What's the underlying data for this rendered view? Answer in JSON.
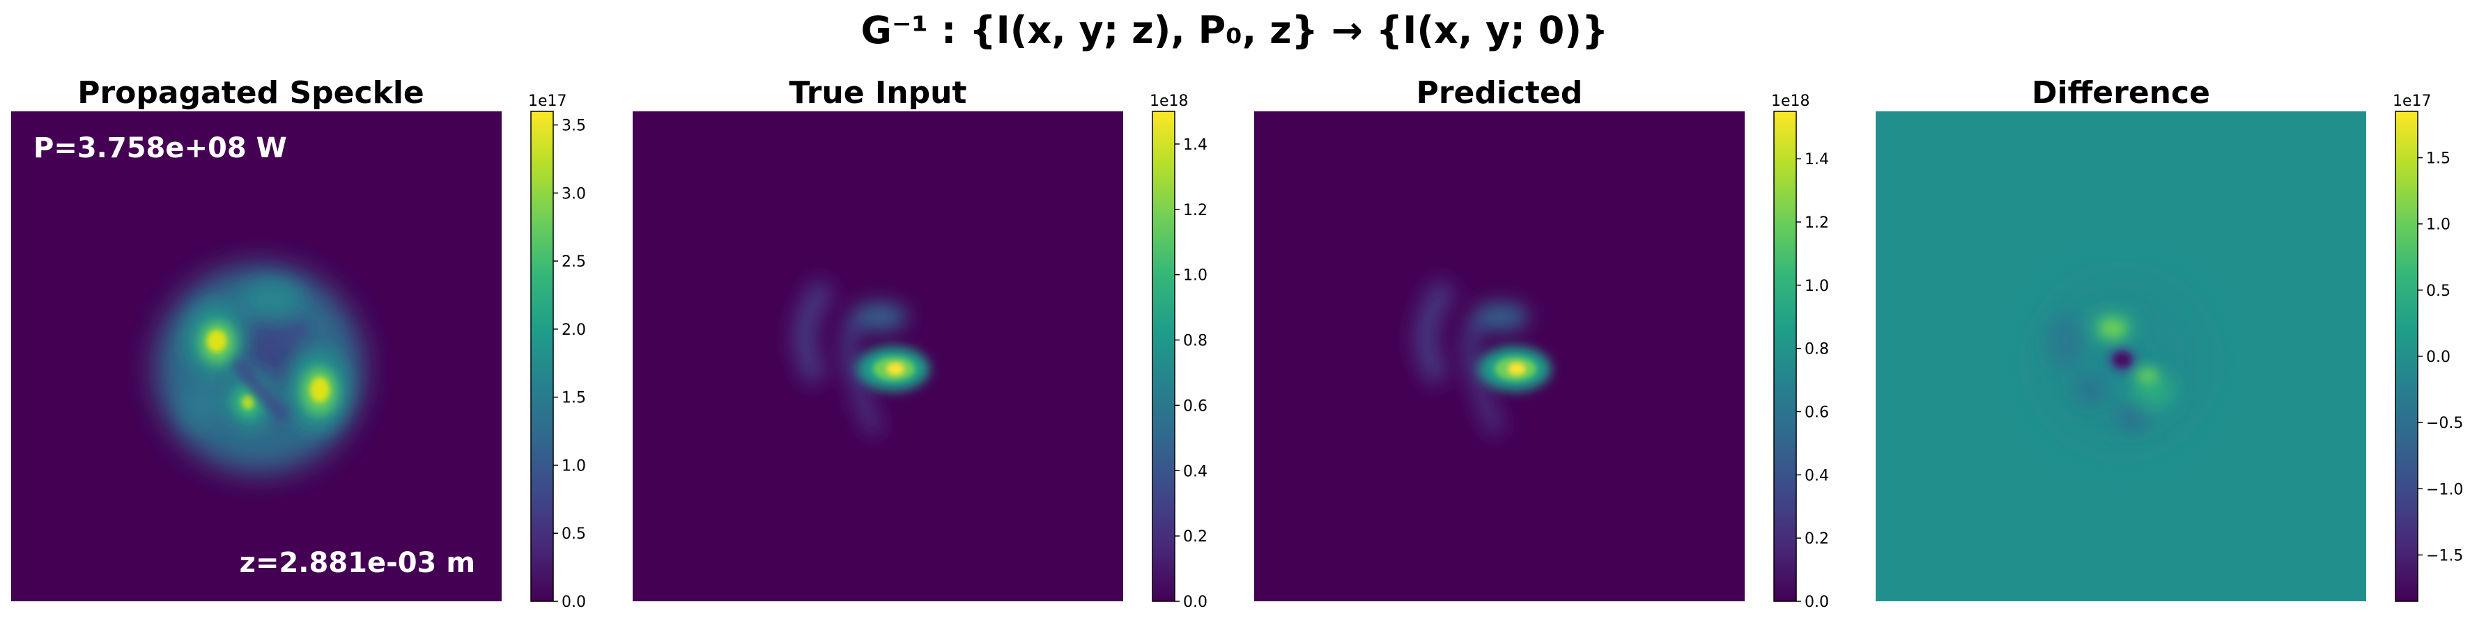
{
  "figure": {
    "suptitle": "G⁻¹ : {I(x, y; z), P₀, z} → {I(x, y; 0)}"
  },
  "colormap": {
    "name": "viridis",
    "stops": [
      "#440154",
      "#482878",
      "#3e4989",
      "#31688e",
      "#26828e",
      "#1f9e89",
      "#35b779",
      "#6ece58",
      "#b5de2b",
      "#fde725"
    ]
  },
  "chart_data": [
    {
      "type": "heatmap",
      "title": "Propagated Speckle",
      "description_of_field": "three bright lobes arranged in a ring (trefoil speckle)",
      "value_range": [
        0,
        3.6e+17
      ],
      "colorbar": {
        "offset": "1e17",
        "ticks": [
          "0.0",
          "0.5",
          "1.0",
          "1.5",
          "2.0",
          "2.5",
          "3.0",
          "3.5"
        ],
        "tick_values": [
          0.0,
          0.5,
          1.0,
          1.5,
          2.0,
          2.5,
          3.0,
          3.5
        ]
      },
      "annotations": {
        "power": "P=3.758e+08 W",
        "distance": "z=2.881e-03 m"
      }
    },
    {
      "type": "heatmap",
      "title": "True Input",
      "value_range": [
        0,
        1.5e+18
      ],
      "colorbar": {
        "offset": "1e18",
        "ticks": [
          "0.0",
          "0.2",
          "0.4",
          "0.6",
          "0.8",
          "1.0",
          "1.2",
          "1.4"
        ],
        "tick_values": [
          0.0,
          0.2,
          0.4,
          0.6,
          0.8,
          1.0,
          1.2,
          1.4
        ]
      }
    },
    {
      "type": "heatmap",
      "title": "Predicted",
      "value_range": [
        0,
        1.55e+18
      ],
      "colorbar": {
        "offset": "1e18",
        "ticks": [
          "0.0",
          "0.2",
          "0.4",
          "0.6",
          "0.8",
          "1.0",
          "1.2",
          "1.4"
        ],
        "tick_values": [
          0.0,
          0.2,
          0.4,
          0.6,
          0.8,
          1.0,
          1.2,
          1.4
        ]
      }
    },
    {
      "type": "heatmap",
      "title": "Difference",
      "value_range": [
        -1.85e+17,
        1.85e+17
      ],
      "colorbar": {
        "offset": "1e17",
        "ticks": [
          "−1.5",
          "−1.0",
          "−0.5",
          "0.0",
          "0.5",
          "1.0",
          "1.5"
        ],
        "tick_values": [
          -1.5,
          -1.0,
          -0.5,
          0.0,
          0.5,
          1.0,
          1.5
        ]
      }
    }
  ]
}
